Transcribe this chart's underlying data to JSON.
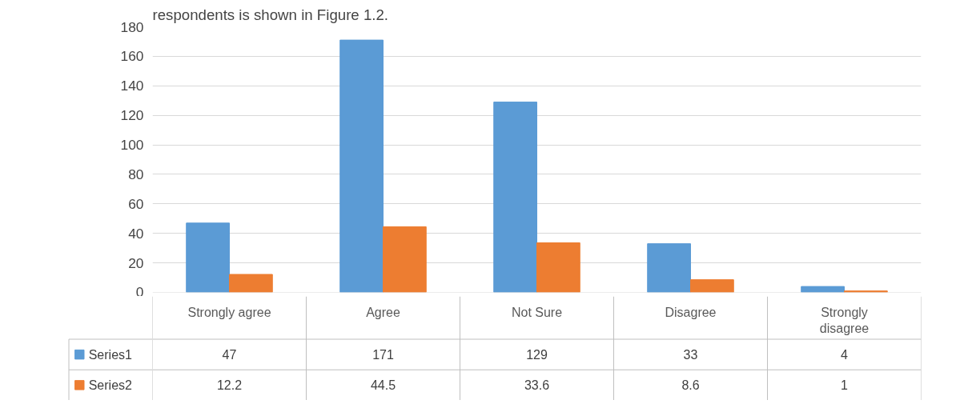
{
  "chart_data": {
    "type": "bar",
    "annotations": [
      "respondents is shown in Figure 1.2."
    ],
    "categories": [
      "Strongly agree",
      "Agree",
      "Not Sure",
      "Disagree",
      "Strongly disagree"
    ],
    "series": [
      {
        "name": "Series1",
        "color": "#5b9bd5",
        "values": [
          47,
          171,
          129,
          33,
          4
        ]
      },
      {
        "name": "Series2",
        "color": "#ed7d31",
        "values": [
          12.2,
          44.5,
          33.6,
          8.6,
          1
        ]
      }
    ],
    "ylim": [
      0,
      180
    ],
    "yticks": [
      0,
      20,
      40,
      60,
      80,
      100,
      120,
      140,
      160,
      180
    ],
    "grid": "y",
    "data_labels": true,
    "legend": "bottom"
  }
}
